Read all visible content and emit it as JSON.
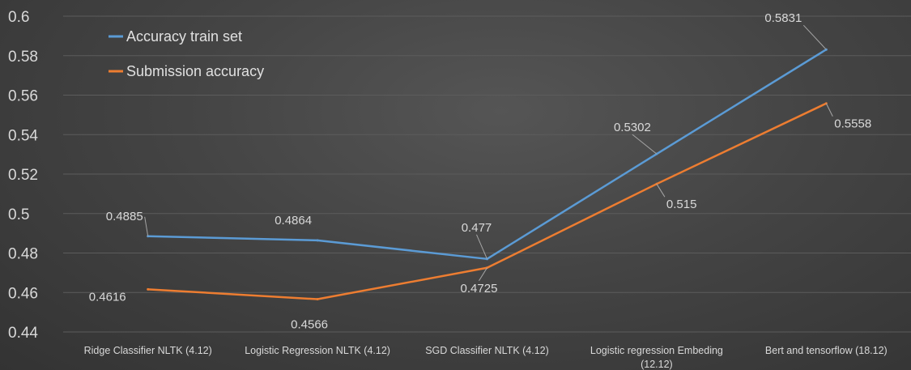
{
  "chart_data": {
    "type": "line",
    "categories": [
      [
        "Ridge Classifier NLTK  (4.12)"
      ],
      [
        "Logistic Regression NLTK (4.12)"
      ],
      [
        "SGD Classifier NLTK (4.12)"
      ],
      [
        "Logistic regression Embeding",
        "(12.12)"
      ],
      [
        "Bert and tensorflow (18.12)"
      ]
    ],
    "series": [
      {
        "name": "Accuracy train set",
        "color": "#5b9bd5",
        "values": [
          0.4885,
          0.4864,
          0.477,
          0.5302,
          0.5831
        ],
        "labels": [
          "0.4885",
          "0.4864",
          "0.477",
          "0.5302",
          "0.5831"
        ]
      },
      {
        "name": "Submission accuracy",
        "color": "#ed7d31",
        "values": [
          0.4616,
          0.4566,
          0.4725,
          0.515,
          0.5558
        ],
        "labels": [
          "0.4616",
          "0.4566",
          "0.4725",
          "0.515",
          "0.5558"
        ]
      }
    ],
    "ylim": [
      0.44,
      0.6
    ],
    "yticks": [
      "0.44",
      "0.46",
      "0.48",
      "0.5",
      "0.52",
      "0.54",
      "0.56",
      "0.58",
      "0.6"
    ],
    "grid": true,
    "legend_position": "top-left",
    "title": "",
    "xlabel": "",
    "ylabel": ""
  }
}
